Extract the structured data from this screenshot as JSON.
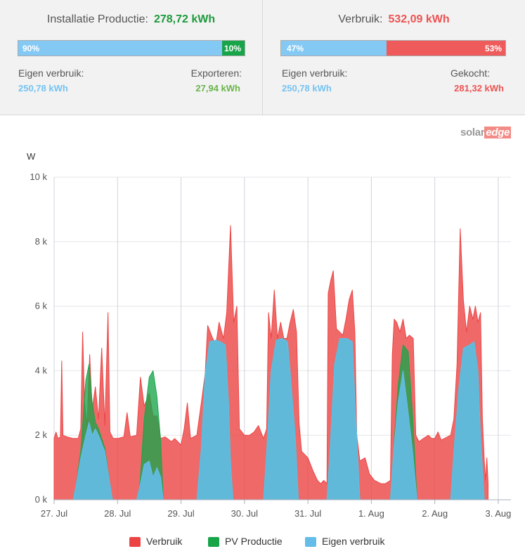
{
  "production": {
    "title": "Installatie Productie:",
    "value": "278,72 kWh",
    "self_pct": 90,
    "self_pct_label": "90%",
    "export_pct": 10,
    "export_pct_label": "10%",
    "self_label": "Eigen verbruik:",
    "self_value": "250,78 kWh",
    "export_label": "Exporteren:",
    "export_value": "27,94 kWh"
  },
  "consumption": {
    "title": "Verbruik:",
    "value": "532,09 kWh",
    "self_pct": 47,
    "self_pct_label": "47%",
    "bought_pct": 53,
    "bought_pct_label": "53%",
    "self_label": "Eigen verbruik:",
    "self_value": "250,78 kWh",
    "bought_label": "Gekocht:",
    "bought_value": "281,32 kWh"
  },
  "logo": {
    "part1": "solar",
    "part2": "edge"
  },
  "colors": {
    "consumption": "#ec4444",
    "production": "#18a54a",
    "self_consumption": "#64bde8",
    "bar_blue": "#84c9f4",
    "bar_green": "#18a54a",
    "bar_red": "#ef5b5b"
  },
  "chart_data": {
    "type": "area",
    "ylabel": "W",
    "ylim": [
      0,
      10000
    ],
    "yticks": [
      0,
      2000,
      4000,
      6000,
      8000,
      10000
    ],
    "ytick_labels": [
      "0 k",
      "2 k",
      "4 k",
      "6 k",
      "8 k",
      "10 k"
    ],
    "xlim": [
      0,
      7.2
    ],
    "xticks": [
      0,
      1,
      2,
      3,
      4,
      5,
      6,
      7
    ],
    "xtick_labels": [
      "27. Jul",
      "28. Jul",
      "29. Jul",
      "30. Jul",
      "31. Jul",
      "1. Aug",
      "2. Aug",
      "3. Aug"
    ],
    "grid": true,
    "legend_position": "bottom",
    "series": [
      {
        "name": "Verbruik",
        "color": "#ec4444",
        "points": [
          [
            0,
            1900
          ],
          [
            0.03,
            2100
          ],
          [
            0.06,
            1900
          ],
          [
            0.1,
            1950
          ],
          [
            0.12,
            4300
          ],
          [
            0.14,
            2000
          ],
          [
            0.2,
            1950
          ],
          [
            0.3,
            1900
          ],
          [
            0.38,
            1900
          ],
          [
            0.42,
            2200
          ],
          [
            0.45,
            5200
          ],
          [
            0.48,
            3000
          ],
          [
            0.52,
            2300
          ],
          [
            0.56,
            4500
          ],
          [
            0.6,
            2800
          ],
          [
            0.65,
            3500
          ],
          [
            0.7,
            2500
          ],
          [
            0.75,
            4700
          ],
          [
            0.8,
            2300
          ],
          [
            0.85,
            5800
          ],
          [
            0.88,
            2100
          ],
          [
            0.93,
            1900
          ],
          [
            1.0,
            1900
          ],
          [
            1.1,
            1950
          ],
          [
            1.15,
            2700
          ],
          [
            1.2,
            1950
          ],
          [
            1.3,
            2000
          ],
          [
            1.36,
            3800
          ],
          [
            1.42,
            2900
          ],
          [
            1.5,
            3300
          ],
          [
            1.56,
            2600
          ],
          [
            1.62,
            2600
          ],
          [
            1.68,
            1900
          ],
          [
            1.75,
            1950
          ],
          [
            1.85,
            1800
          ],
          [
            1.9,
            1900
          ],
          [
            1.95,
            1800
          ],
          [
            2.0,
            1700
          ],
          [
            2.05,
            2200
          ],
          [
            2.1,
            3000
          ],
          [
            2.15,
            1900
          ],
          [
            2.25,
            2000
          ],
          [
            2.32,
            3000
          ],
          [
            2.38,
            3900
          ],
          [
            2.42,
            5400
          ],
          [
            2.5,
            5000
          ],
          [
            2.55,
            4800
          ],
          [
            2.6,
            5500
          ],
          [
            2.67,
            5000
          ],
          [
            2.72,
            5800
          ],
          [
            2.78,
            8500
          ],
          [
            2.83,
            5500
          ],
          [
            2.88,
            6000
          ],
          [
            2.92,
            2200
          ],
          [
            3.0,
            2000
          ],
          [
            3.08,
            2000
          ],
          [
            3.15,
            2100
          ],
          [
            3.22,
            2300
          ],
          [
            3.3,
            1900
          ],
          [
            3.35,
            2200
          ],
          [
            3.38,
            5800
          ],
          [
            3.42,
            5000
          ],
          [
            3.47,
            6500
          ],
          [
            3.52,
            5000
          ],
          [
            3.57,
            5500
          ],
          [
            3.62,
            5000
          ],
          [
            3.67,
            5000
          ],
          [
            3.72,
            5500
          ],
          [
            3.77,
            5900
          ],
          [
            3.82,
            5200
          ],
          [
            3.86,
            2400
          ],
          [
            3.9,
            1500
          ],
          [
            4.0,
            1300
          ],
          [
            4.08,
            900
          ],
          [
            4.15,
            600
          ],
          [
            4.2,
            500
          ],
          [
            4.25,
            600
          ],
          [
            4.3,
            500
          ],
          [
            4.32,
            6400
          ],
          [
            4.36,
            6800
          ],
          [
            4.4,
            7100
          ],
          [
            4.45,
            5300
          ],
          [
            4.5,
            5200
          ],
          [
            4.55,
            5100
          ],
          [
            4.6,
            5600
          ],
          [
            4.65,
            6200
          ],
          [
            4.7,
            6500
          ],
          [
            4.74,
            5200
          ],
          [
            4.77,
            2000
          ],
          [
            4.82,
            1200
          ],
          [
            4.9,
            1300
          ],
          [
            4.97,
            800
          ],
          [
            5.05,
            600
          ],
          [
            5.15,
            500
          ],
          [
            5.22,
            500
          ],
          [
            5.3,
            600
          ],
          [
            5.33,
            4500
          ],
          [
            5.36,
            5600
          ],
          [
            5.4,
            5500
          ],
          [
            5.45,
            5200
          ],
          [
            5.5,
            5600
          ],
          [
            5.55,
            5000
          ],
          [
            5.6,
            5100
          ],
          [
            5.66,
            5000
          ],
          [
            5.7,
            2000
          ],
          [
            5.75,
            1800
          ],
          [
            5.82,
            1900
          ],
          [
            5.9,
            2000
          ],
          [
            5.95,
            1900
          ],
          [
            6.0,
            1900
          ],
          [
            6.05,
            2100
          ],
          [
            6.1,
            1850
          ],
          [
            6.15,
            1900
          ],
          [
            6.25,
            2000
          ],
          [
            6.3,
            2500
          ],
          [
            6.35,
            4200
          ],
          [
            6.4,
            8400
          ],
          [
            6.45,
            6200
          ],
          [
            6.5,
            5200
          ],
          [
            6.55,
            6000
          ],
          [
            6.6,
            5600
          ],
          [
            6.64,
            6000
          ],
          [
            6.68,
            5500
          ],
          [
            6.72,
            5800
          ],
          [
            6.75,
            2500
          ],
          [
            6.78,
            1200
          ],
          [
            6.8,
            600
          ],
          [
            6.82,
            1300
          ],
          [
            6.84,
            500
          ]
        ]
      },
      {
        "name": "PV Productie",
        "color": "#18a54a",
        "points": [
          [
            0,
            0
          ],
          [
            0.3,
            0
          ],
          [
            0.35,
            500
          ],
          [
            0.42,
            1500
          ],
          [
            0.5,
            3700
          ],
          [
            0.55,
            4200
          ],
          [
            0.6,
            3000
          ],
          [
            0.65,
            2400
          ],
          [
            0.7,
            2200
          ],
          [
            0.8,
            1600
          ],
          [
            0.88,
            500
          ],
          [
            0.92,
            0
          ],
          [
            1.3,
            0
          ],
          [
            1.35,
            400
          ],
          [
            1.42,
            2500
          ],
          [
            1.5,
            3800
          ],
          [
            1.56,
            4000
          ],
          [
            1.62,
            3200
          ],
          [
            1.68,
            1800
          ],
          [
            1.72,
            0
          ],
          [
            2.25,
            0
          ],
          [
            2.32,
            1600
          ],
          [
            2.38,
            3900
          ],
          [
            2.45,
            4900
          ],
          [
            2.55,
            4950
          ],
          [
            2.62,
            4900
          ],
          [
            2.7,
            4800
          ],
          [
            2.75,
            3000
          ],
          [
            2.78,
            1200
          ],
          [
            2.82,
            0
          ],
          [
            3.3,
            0
          ],
          [
            3.35,
            1500
          ],
          [
            3.42,
            4000
          ],
          [
            3.5,
            4950
          ],
          [
            3.6,
            5000
          ],
          [
            3.68,
            4900
          ],
          [
            3.72,
            4000
          ],
          [
            3.8,
            2000
          ],
          [
            3.85,
            0
          ],
          [
            4.3,
            0
          ],
          [
            4.35,
            1600
          ],
          [
            4.42,
            4200
          ],
          [
            4.5,
            5000
          ],
          [
            4.62,
            5000
          ],
          [
            4.7,
            4900
          ],
          [
            4.75,
            2800
          ],
          [
            4.82,
            0
          ],
          [
            5.3,
            0
          ],
          [
            5.35,
            1500
          ],
          [
            5.42,
            3500
          ],
          [
            5.5,
            4800
          ],
          [
            5.58,
            4600
          ],
          [
            5.65,
            2600
          ],
          [
            5.72,
            0
          ],
          [
            6.25,
            0
          ],
          [
            6.3,
            1500
          ],
          [
            6.38,
            3500
          ],
          [
            6.45,
            4700
          ],
          [
            6.55,
            4800
          ],
          [
            6.62,
            4900
          ],
          [
            6.68,
            4000
          ],
          [
            6.72,
            2000
          ],
          [
            6.78,
            0
          ],
          [
            6.84,
            0
          ]
        ]
      },
      {
        "name": "Eigen verbruik",
        "color": "#64bde8",
        "points": [
          [
            0,
            0
          ],
          [
            0.3,
            0
          ],
          [
            0.35,
            500
          ],
          [
            0.42,
            1300
          ],
          [
            0.5,
            2000
          ],
          [
            0.55,
            2400
          ],
          [
            0.6,
            2000
          ],
          [
            0.65,
            2200
          ],
          [
            0.7,
            2000
          ],
          [
            0.8,
            1500
          ],
          [
            0.88,
            500
          ],
          [
            0.92,
            0
          ],
          [
            1.3,
            0
          ],
          [
            1.35,
            400
          ],
          [
            1.42,
            1100
          ],
          [
            1.5,
            1200
          ],
          [
            1.56,
            700
          ],
          [
            1.62,
            1000
          ],
          [
            1.68,
            700
          ],
          [
            1.72,
            0
          ],
          [
            2.25,
            0
          ],
          [
            2.32,
            1600
          ],
          [
            2.38,
            3900
          ],
          [
            2.45,
            4900
          ],
          [
            2.55,
            4950
          ],
          [
            2.62,
            4900
          ],
          [
            2.7,
            4800
          ],
          [
            2.75,
            3000
          ],
          [
            2.78,
            1200
          ],
          [
            2.82,
            0
          ],
          [
            3.3,
            0
          ],
          [
            3.35,
            1500
          ],
          [
            3.42,
            4000
          ],
          [
            3.5,
            4950
          ],
          [
            3.6,
            5000
          ],
          [
            3.68,
            4900
          ],
          [
            3.72,
            4000
          ],
          [
            3.8,
            2000
          ],
          [
            3.85,
            0
          ],
          [
            4.3,
            0
          ],
          [
            4.35,
            1600
          ],
          [
            4.42,
            4200
          ],
          [
            4.5,
            5000
          ],
          [
            4.62,
            5000
          ],
          [
            4.7,
            4900
          ],
          [
            4.75,
            2800
          ],
          [
            4.82,
            0
          ],
          [
            5.3,
            0
          ],
          [
            5.35,
            1500
          ],
          [
            5.42,
            3000
          ],
          [
            5.5,
            4000
          ],
          [
            5.58,
            2700
          ],
          [
            5.65,
            1500
          ],
          [
            5.72,
            0
          ],
          [
            6.25,
            0
          ],
          [
            6.3,
            1500
          ],
          [
            6.38,
            3500
          ],
          [
            6.45,
            4700
          ],
          [
            6.55,
            4800
          ],
          [
            6.62,
            4900
          ],
          [
            6.68,
            4000
          ],
          [
            6.72,
            2000
          ],
          [
            6.78,
            0
          ],
          [
            6.84,
            0
          ]
        ]
      }
    ]
  }
}
